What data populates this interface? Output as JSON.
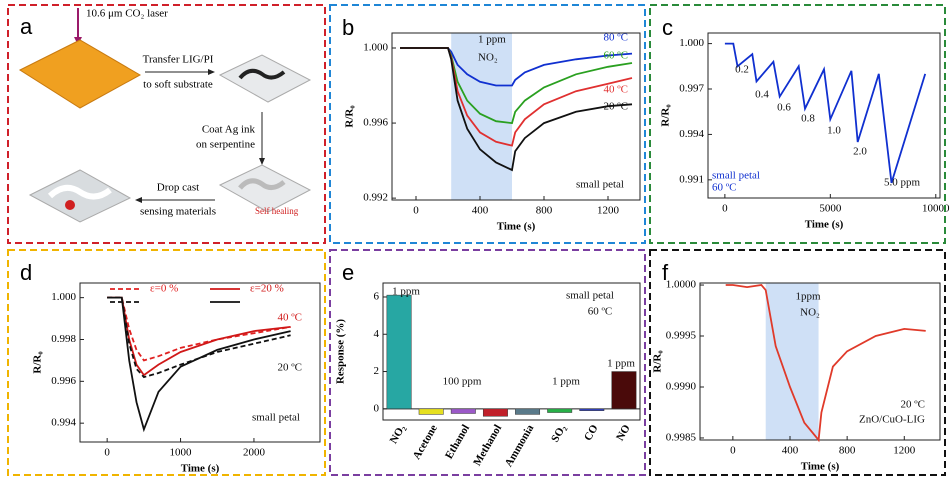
{
  "diagram": {
    "label": "a",
    "border_color": "#d0202a",
    "laser": "10.6 μm CO₂ laser",
    "transfer": [
      "Transfer LIG/PI",
      "to soft substrate"
    ],
    "coat": [
      "Coat Ag ink",
      "on serpentine"
    ],
    "drop": [
      "Drop cast",
      "sensing materials"
    ],
    "healing": "Self healing"
  },
  "chart_data": [
    {
      "label": "b",
      "type": "line",
      "border_color": "#1f86d6",
      "xlabel": "Time (s)",
      "ylabel": "R/R₀",
      "xlim": [
        -150,
        1400
      ],
      "ylim": [
        0.9919,
        1.0008
      ],
      "xticks": [
        0,
        400,
        800,
        1200
      ],
      "yticks": [
        0.992,
        0.996,
        {
          "value": 1,
          "label": "1.000"
        }
      ],
      "shade": [
        220,
        600
      ],
      "x": [
        -100,
        0,
        100,
        200,
        220,
        260,
        320,
        400,
        500,
        600,
        620,
        680,
        800,
        1000,
        1200,
        1350
      ],
      "series": [
        {
          "name": "80 ºC",
          "color": "#1030d0",
          "values": [
            1,
            1,
            1,
            1,
            0.9998,
            0.9991,
            0.9986,
            0.9982,
            0.998,
            0.998,
            0.9983,
            0.9987,
            0.9991,
            0.9994,
            0.9996,
            0.9997
          ]
        },
        {
          "name": "60 ºC",
          "color": "#2aa020",
          "values": [
            1,
            1,
            1,
            1,
            0.9996,
            0.9982,
            0.9972,
            0.9965,
            0.9961,
            0.996,
            0.9966,
            0.9972,
            0.9979,
            0.9986,
            0.999,
            0.9992
          ]
        },
        {
          "name": "40 ºC",
          "color": "#e03030",
          "values": [
            1,
            1,
            1,
            1,
            0.9995,
            0.9977,
            0.9964,
            0.9955,
            0.995,
            0.9948,
            0.9955,
            0.9962,
            0.997,
            0.9977,
            0.9981,
            0.9984
          ]
        },
        {
          "name": "20 ºC",
          "color": "#111111",
          "values": [
            1,
            1,
            1,
            1,
            0.9994,
            0.9972,
            0.9957,
            0.9946,
            0.9939,
            0.9935,
            0.9945,
            0.9952,
            0.996,
            0.9966,
            0.9969,
            0.997
          ]
        }
      ],
      "annotations": [
        "1 ppm",
        "NO₂",
        "small petal"
      ]
    },
    {
      "label": "c",
      "type": "line",
      "border_color": "#2a8a3a",
      "xlabel": "Time (s)",
      "ylabel": "R/R₀",
      "xlim": [
        -800,
        10200
      ],
      "ylim": [
        0.9898,
        1.0007
      ],
      "xticks": [
        0,
        5000,
        10000
      ],
      "yticks": [
        0.991,
        0.994,
        0.997,
        {
          "value": 1,
          "label": "1.000"
        }
      ],
      "x": [
        0,
        400,
        600,
        1300,
        1500,
        2300,
        2600,
        3500,
        3800,
        4700,
        5000,
        6000,
        6300,
        7300,
        7900,
        9500
      ],
      "series": [
        {
          "color": "#1030d0",
          "values": [
            1,
            1,
            0.9985,
            0.9993,
            0.9975,
            0.9988,
            0.9965,
            0.9985,
            0.9957,
            0.9983,
            0.995,
            0.9982,
            0.9935,
            0.998,
            0.9908,
            0.998
          ]
        }
      ],
      "annotations": [
        "0.2",
        "0.4",
        "0.6",
        "0.8",
        "1.0",
        "2.0",
        "5.0 ppm",
        "small petal",
        "60 ºC"
      ]
    },
    {
      "label": "d",
      "type": "line",
      "border_color": "#f0b400",
      "xlabel": "Time (s)",
      "ylabel": "R/R₀",
      "xlim": [
        -370,
        2900
      ],
      "ylim": [
        0.9931,
        1.0007
      ],
      "xticks": [
        0,
        1000,
        2000
      ],
      "yticks": [
        0.994,
        0.996,
        0.998,
        {
          "value": 1,
          "label": "1.000"
        }
      ],
      "x": [
        0,
        100,
        200,
        300,
        400,
        500,
        700,
        1000,
        1500,
        2000,
        2500
      ],
      "series": [
        {
          "name": "ε=0 %",
          "color": "#e02020",
          "dashed": true,
          "values": [
            1,
            1,
            1,
            0.9985,
            0.9975,
            0.997,
            0.9972,
            0.9976,
            0.998,
            0.9983,
            0.9986
          ]
        },
        {
          "name": "ε=20 %",
          "color": "#d01818",
          "dashed": false,
          "values": [
            1,
            1,
            1,
            0.998,
            0.9968,
            0.9963,
            0.9968,
            0.9974,
            0.998,
            0.9984,
            0.9986
          ]
        },
        {
          "color": "#111111",
          "dashed": true,
          "values": [
            1,
            1,
            1,
            0.9978,
            0.9966,
            0.9962,
            0.9964,
            0.9968,
            0.9974,
            0.9978,
            0.9982
          ]
        },
        {
          "color": "#111111",
          "dashed": false,
          "values": [
            1,
            1,
            1,
            0.997,
            0.995,
            0.9937,
            0.9955,
            0.9967,
            0.9975,
            0.998,
            0.9984
          ]
        }
      ],
      "annotations": [
        "40 ºC",
        "20 ºC",
        "small petal"
      ]
    },
    {
      "label": "e",
      "type": "bar",
      "border_color": "#7a3ea0",
      "ylabel": "Response (%)",
      "ylim": [
        -0.6,
        6.75
      ],
      "yticks": [
        0,
        2,
        4,
        6
      ],
      "categories": [
        "NO₂",
        "Acetone",
        "Ethanol",
        "Methanol",
        "Ammonia",
        "SO₂",
        "CO",
        "NO"
      ],
      "values": [
        6.1,
        -0.3,
        -0.25,
        -0.4,
        -0.3,
        -0.2,
        -0.1,
        2.0
      ],
      "colors": [
        "#27a7a3",
        "#e6e020",
        "#9b59c8",
        "#c0202a",
        "#5a7a8a",
        "#28b048",
        "#3040c0",
        "#4a0a0a"
      ],
      "annotations": [
        "1 ppm",
        "small petal",
        "60 ºC",
        "100 ppm",
        "1 ppm",
        "1 ppm"
      ]
    },
    {
      "label": "f",
      "type": "line",
      "border_color": "#111111",
      "xlabel": "Time (s)",
      "ylabel": "R/R₀",
      "xlim": [
        -230,
        1450
      ],
      "ylim": [
        0.99848,
        1.00002
      ],
      "xticks": [
        0,
        400,
        800,
        1200
      ],
      "yticks": [
        0.9985,
        {
          "value": 0.999,
          "label": "0.9990"
        },
        0.9995,
        {
          "value": 1,
          "label": "1.0000"
        }
      ],
      "shade": [
        230,
        600
      ],
      "x": [
        -50,
        0,
        100,
        200,
        230,
        300,
        400,
        500,
        600,
        620,
        700,
        800,
        1000,
        1200,
        1350
      ],
      "series": [
        {
          "color": "#e03a2a",
          "values": [
            1,
            1,
            0.99998,
            1,
            0.99995,
            0.9994,
            0.999,
            0.99865,
            0.99848,
            0.99875,
            0.9992,
            0.99935,
            0.9995,
            0.99957,
            0.99955
          ]
        }
      ],
      "annotations": [
        "1ppm",
        "NO₂",
        "20 ºC",
        "ZnO/CuO-LIG"
      ]
    }
  ]
}
